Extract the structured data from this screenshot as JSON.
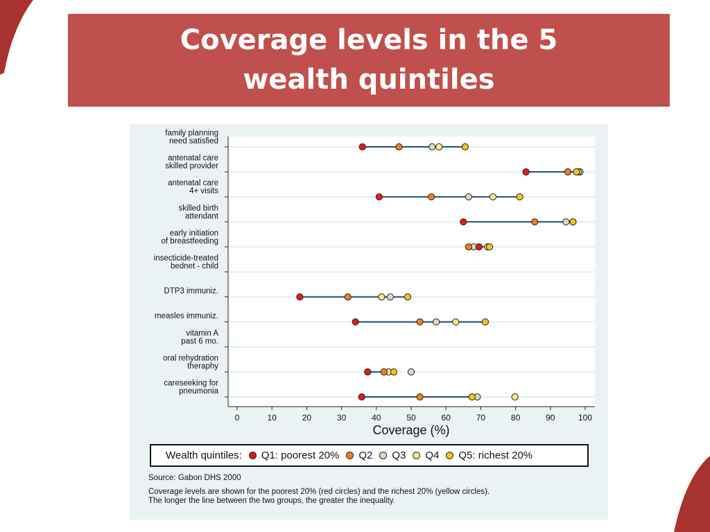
{
  "slide": {
    "title": "Coverage levels in the 5 wealth quintiles",
    "accent_color": "#c0504d"
  },
  "chart_data": {
    "type": "scatter",
    "subtype": "dot-range",
    "xlabel": "Coverage (%)",
    "xlim": [
      0,
      100
    ],
    "xticks": [
      0,
      10,
      20,
      30,
      40,
      50,
      60,
      70,
      80,
      90,
      100
    ],
    "grid": true,
    "legend_title": "Wealth quintiles:",
    "legend_position": "bottom",
    "series": [
      {
        "name": "Q1: poorest 20%",
        "color": "#e41a1c"
      },
      {
        "name": "Q2",
        "color": "#f07f1e"
      },
      {
        "name": "Q3",
        "color": "#dcd9bf"
      },
      {
        "name": "Q4",
        "color": "#fbe88c"
      },
      {
        "name": "Q5: richest 20%",
        "color": "#f5c51c"
      }
    ],
    "categories": [
      {
        "label": [
          "family planning",
          "need satisfied"
        ],
        "values": [
          36,
          46.5,
          56,
          58,
          65.5
        ]
      },
      {
        "label": [
          "antenatal care",
          "skilled provider"
        ],
        "values": [
          83,
          95,
          98.5,
          98,
          97.5
        ]
      },
      {
        "label": [
          "antenatal care",
          "4+ visits"
        ],
        "values": [
          40.8,
          55.8,
          66.5,
          73.5,
          81.2
        ]
      },
      {
        "label": [
          "skilled birth",
          "attendant"
        ],
        "values": [
          65,
          85.5,
          94.5,
          96.5,
          96.5
        ]
      },
      {
        "label": [
          "early initiation",
          "of breastfeeding"
        ],
        "values": [
          69.5,
          66.5,
          68,
          72,
          72.5
        ]
      },
      {
        "label": [
          "insecticide-treated",
          "bednet - child"
        ],
        "values": []
      },
      {
        "label": [
          "DTP3 immuniz."
        ],
        "values": [
          18,
          31.8,
          44,
          41.5,
          49
        ]
      },
      {
        "label": [
          "measles immuniz."
        ],
        "values": [
          34,
          52.5,
          57.2,
          62.8,
          71.3
        ]
      },
      {
        "label": [
          "vitamin A",
          "past 6 mo."
        ],
        "values": []
      },
      {
        "label": [
          "oral rehydration",
          "theraphy"
        ],
        "values": [
          37.5,
          42.2,
          50,
          43.5,
          45
        ]
      },
      {
        "label": [
          "careseeking for",
          "pneumonia"
        ],
        "values": [
          35.8,
          52.5,
          69,
          79.8,
          67.5
        ]
      }
    ]
  },
  "notes": {
    "source": "Source: Gabon DHS 2000",
    "line1": "Coverage levels are shown for the poorest 20% (red circles) and the richest 20% (yellow circles).",
    "line2": "The longer the line between the two groups, the greater the inequality."
  }
}
